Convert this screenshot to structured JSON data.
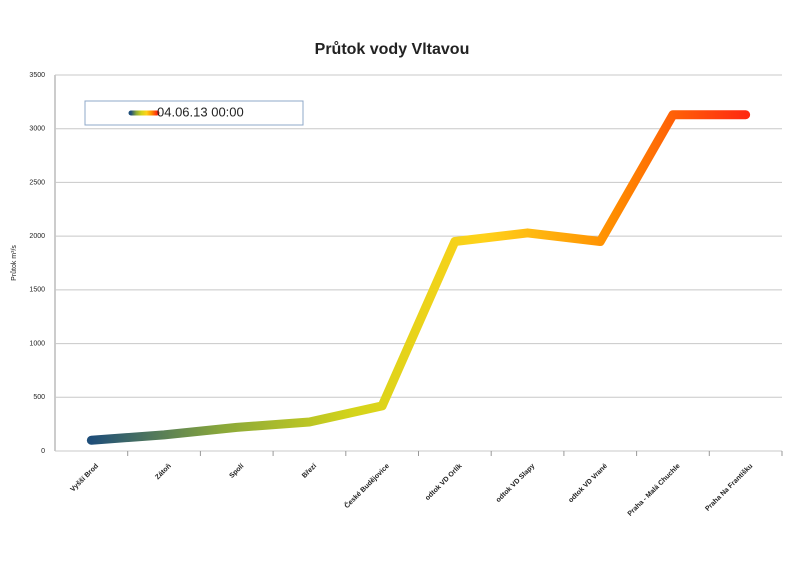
{
  "chart_data": {
    "type": "line",
    "title": "Průtok vody Vltavou",
    "y_label": "Průtok m³/s",
    "categories": [
      "Vyšší Brod",
      "Zátoň",
      "Spolí",
      "Březí",
      "České Budějovice",
      "odtok VD Orlík",
      "odtok VD Slapy",
      "odtok VD Vrané",
      "Praha - Malá Chuchle",
      "Praha Na Františku"
    ],
    "series": [
      {
        "name": "04.06.13 00:00",
        "colors": [
          "#1f4e79",
          "#8aa83a",
          "#d4d41a",
          "#ffd21a",
          "#ff8c00",
          "#ff2a10"
        ],
        "values": [
          100,
          150,
          220,
          270,
          420,
          1950,
          2030,
          1950,
          3130,
          3130
        ]
      }
    ],
    "ylim": [
      0,
      3500
    ],
    "yticks": [
      0,
      500,
      1000,
      1500,
      2000,
      2500,
      3000,
      3500
    ],
    "grid": true
  }
}
